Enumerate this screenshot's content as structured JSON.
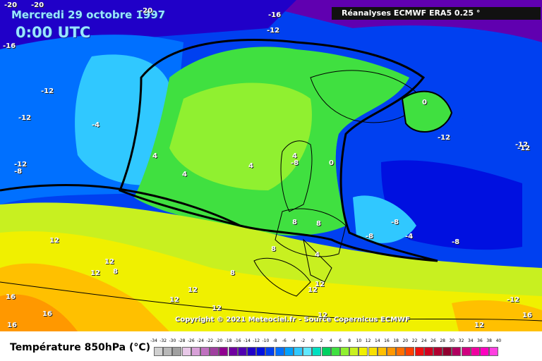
{
  "title": {
    "date": "Mercredi 29 octobre 1997",
    "time": "0:00 UTC"
  },
  "source": "Réanalyses ECMWF ERA5 0.25 °",
  "copyright": "Copyright © 2021 Meteociel.fr - Source Copernicus ECMWF",
  "legend": {
    "title": "Température 850hPa (°C)",
    "ticks": [
      "-34",
      "-32",
      "-30",
      "-28",
      "-26",
      "-24",
      "-22",
      "-20",
      "-18",
      "-16",
      "-14",
      "-12",
      "-10",
      "-8",
      "-6",
      "-4",
      "-2",
      "0",
      "2",
      "4",
      "6",
      "8",
      "10",
      "12",
      "14",
      "16",
      "18",
      "20",
      "22",
      "24",
      "26",
      "28",
      "30",
      "32",
      "34",
      "36",
      "38",
      "40"
    ],
    "colors": [
      "#d0d0d0",
      "#b8b8b8",
      "#a0a0a0",
      "#e8c8e8",
      "#d8a0d8",
      "#c070c0",
      "#a040a0",
      "#900090",
      "#7000a0",
      "#5000b0",
      "#2000c8",
      "#0010e0",
      "#0040f0",
      "#0070ff",
      "#00a0ff",
      "#30c8ff",
      "#60e8ff",
      "#00e0c0",
      "#00d060",
      "#40e040",
      "#90f030",
      "#c8f020",
      "#f0f000",
      "#f8e000",
      "#ffc000",
      "#ff9800",
      "#ff7000",
      "#ff4000",
      "#f01010",
      "#d00020",
      "#b00030",
      "#900030",
      "#b00060",
      "#d00080",
      "#f000a0",
      "#ff00c0",
      "#ff40e0"
    ]
  },
  "map_labels": [
    {
      "t": "-20"
    },
    {
      "t": "-20"
    },
    {
      "t": "-20"
    },
    {
      "t": "-16"
    },
    {
      "t": "-16"
    },
    {
      "t": "-12"
    },
    {
      "t": "-12"
    },
    {
      "t": "-12"
    },
    {
      "t": "-12"
    },
    {
      "t": "-12"
    },
    {
      "t": "-8"
    },
    {
      "t": "-12"
    },
    {
      "t": "-4"
    },
    {
      "t": "4"
    },
    {
      "t": "4"
    },
    {
      "t": "4"
    },
    {
      "t": "-8"
    },
    {
      "t": "4"
    },
    {
      "t": "0"
    },
    {
      "t": "0"
    },
    {
      "t": "-12"
    },
    {
      "t": "-8"
    },
    {
      "t": "-8"
    },
    {
      "t": "-4"
    },
    {
      "t": "-8"
    },
    {
      "t": "8"
    },
    {
      "t": "8"
    },
    {
      "t": "8"
    },
    {
      "t": "4"
    },
    {
      "t": "12"
    },
    {
      "t": "12"
    },
    {
      "t": "12"
    },
    {
      "t": "8"
    },
    {
      "t": "12"
    },
    {
      "t": "8"
    },
    {
      "t": "12"
    },
    {
      "t": "12"
    },
    {
      "t": "12"
    },
    {
      "t": "12"
    },
    {
      "t": "16"
    },
    {
      "t": "16"
    },
    {
      "t": "16"
    },
    {
      "t": "12"
    },
    {
      "t": "16"
    },
    {
      "t": "12"
    },
    {
      "t": "-12"
    }
  ]
}
